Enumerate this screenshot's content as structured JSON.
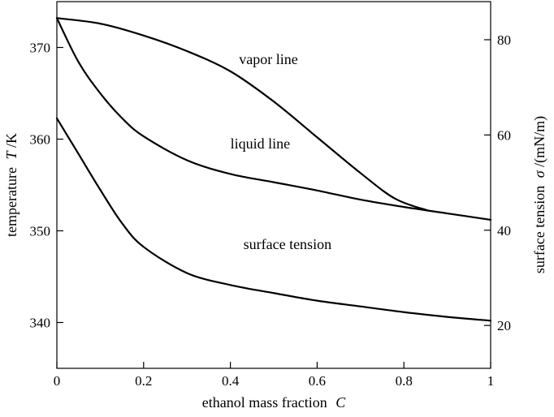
{
  "chart_data": {
    "type": "line",
    "x_axis": {
      "label_text": "ethanol mass fraction",
      "label_symbol": "C",
      "range": [
        0,
        1
      ],
      "ticks": [
        0,
        0.2,
        0.4,
        0.6,
        0.8,
        1
      ],
      "tick_labels": [
        "0",
        "0.2",
        "0.4",
        "0.6",
        "0.8",
        "1"
      ]
    },
    "y_axis_left": {
      "label_text": "temperature",
      "label_symbol": "T",
      "label_unit": "/K",
      "range": [
        335,
        375
      ],
      "ticks": [
        340,
        350,
        360,
        370
      ],
      "tick_labels": [
        "340",
        "350",
        "360",
        "370"
      ]
    },
    "y_axis_right": {
      "label_text": "surface tension",
      "label_symbol": "σ",
      "label_unit": "/(mN/m)",
      "range": [
        11,
        88
      ],
      "ticks": [
        20,
        40,
        60,
        80
      ],
      "tick_labels": [
        "20",
        "40",
        "60",
        "80"
      ]
    },
    "grid": false,
    "series": [
      {
        "name": "vapor line",
        "axis": "left",
        "points": [
          [
            0,
            373.2
          ],
          [
            0.1,
            372.6
          ],
          [
            0.2,
            371.3
          ],
          [
            0.3,
            369.6
          ],
          [
            0.4,
            367.4
          ],
          [
            0.5,
            364.1
          ],
          [
            0.6,
            360.2
          ],
          [
            0.7,
            356.3
          ],
          [
            0.78,
            353.5
          ],
          [
            0.856,
            352.2
          ]
        ]
      },
      {
        "name": "liquid line",
        "axis": "left",
        "points": [
          [
            0,
            373.2
          ],
          [
            0.05,
            368.4
          ],
          [
            0.1,
            365.0
          ],
          [
            0.15,
            362.3
          ],
          [
            0.2,
            360.3
          ],
          [
            0.3,
            357.7
          ],
          [
            0.4,
            356.2
          ],
          [
            0.5,
            355.3
          ],
          [
            0.6,
            354.4
          ],
          [
            0.7,
            353.4
          ],
          [
            0.8,
            352.6
          ],
          [
            0.9,
            351.9
          ],
          [
            1.0,
            351.2
          ]
        ]
      },
      {
        "name": "surface tension",
        "axis": "right",
        "points": [
          [
            0,
            63.5
          ],
          [
            0.05,
            56.0
          ],
          [
            0.1,
            48.5
          ],
          [
            0.15,
            41.5
          ],
          [
            0.2,
            36.5
          ],
          [
            0.3,
            31.0
          ],
          [
            0.4,
            28.5
          ],
          [
            0.5,
            26.8
          ],
          [
            0.6,
            25.2
          ],
          [
            0.7,
            24.0
          ],
          [
            0.8,
            22.8
          ],
          [
            0.9,
            21.8
          ],
          [
            1.0,
            21.0
          ]
        ]
      }
    ],
    "annotations": [
      {
        "text": "vapor line",
        "x": 0.42,
        "y_left": 368.2
      },
      {
        "text": "liquid line",
        "x": 0.4,
        "y_left": 359.0
      },
      {
        "text": "surface tension",
        "x": 0.43,
        "y_left": 348.0
      }
    ]
  }
}
